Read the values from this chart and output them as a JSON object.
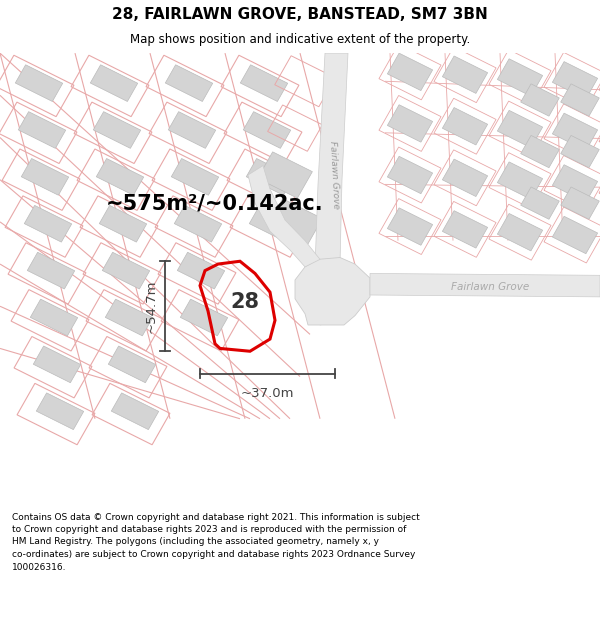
{
  "title": "28, FAIRLAWN GROVE, BANSTEAD, SM7 3BN",
  "subtitle": "Map shows position and indicative extent of the property.",
  "footer": "Contains OS data © Crown copyright and database right 2021. This information is subject\nto Crown copyright and database rights 2023 and is reproduced with the permission of\nHM Land Registry. The polygons (including the associated geometry, namely x, y\nco-ordinates) are subject to Crown copyright and database rights 2023 Ordnance Survey\n100026316.",
  "area_text": "~575m²/~0.142ac.",
  "dim_width": "~37.0m",
  "dim_height": "~54.7m",
  "label_28": "28",
  "road_label_v": "Fairlawn Grove",
  "road_label_h": "Fairlawn Grove",
  "background_color": "#ffffff",
  "map_bg": "#ffffff",
  "plot_line_color": "#e8a8a8",
  "highlight_color": "#dd0000",
  "dim_color": "#444444",
  "title_color": "#000000",
  "footer_color": "#000000",
  "road_fill": "#e8e8e8",
  "road_edge": "#cccccc",
  "building_fill": "#d4d4d4",
  "building_edge": "#bbbbbb",
  "plot_fill": "none"
}
